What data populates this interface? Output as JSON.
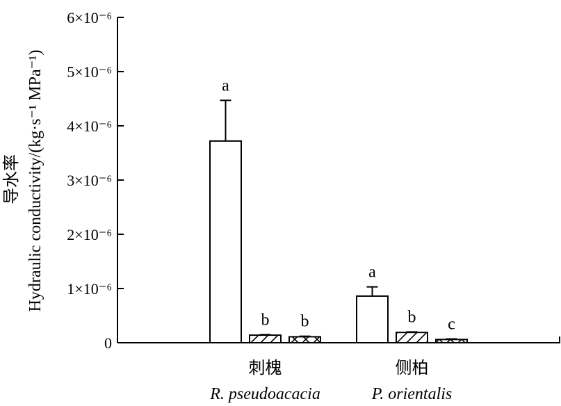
{
  "chart_data": {
    "type": "bar",
    "ylabel": "Hydraulic conductivity/(kg·s⁻¹ MPa⁻¹)",
    "ylabel_zh": "导水率",
    "yticks": [
      "0",
      "1×10⁻⁶",
      "2×10⁻⁶",
      "3×10⁻⁶",
      "4×10⁻⁶",
      "5×10⁻⁶",
      "6×10⁻⁶"
    ],
    "ytick_values": [
      0,
      1e-06,
      2e-06,
      3e-06,
      4e-06,
      5e-06,
      6e-06
    ],
    "ylim": [
      0,
      6e-06
    ],
    "grid": false,
    "groups": [
      {
        "label_zh": "刺槐",
        "label_en": "R. pseudoacacia",
        "bars": [
          {
            "value": 3.72e-06,
            "error": 7.5e-07,
            "sig": "a",
            "pattern": "none"
          },
          {
            "value": 1.4e-07,
            "error": 1e-08,
            "sig": "b",
            "pattern": "hatch"
          },
          {
            "value": 1.1e-07,
            "error": 1e-08,
            "sig": "b",
            "pattern": "cross"
          }
        ]
      },
      {
        "label_zh": "侧柏",
        "label_en": "P. orientalis",
        "bars": [
          {
            "value": 8.6e-07,
            "error": 1.7e-07,
            "sig": "a",
            "pattern": "none"
          },
          {
            "value": 1.9e-07,
            "error": 1e-08,
            "sig": "b",
            "pattern": "hatch"
          },
          {
            "value": 6e-08,
            "error": 1e-08,
            "sig": "c",
            "pattern": "cross"
          }
        ]
      }
    ]
  }
}
